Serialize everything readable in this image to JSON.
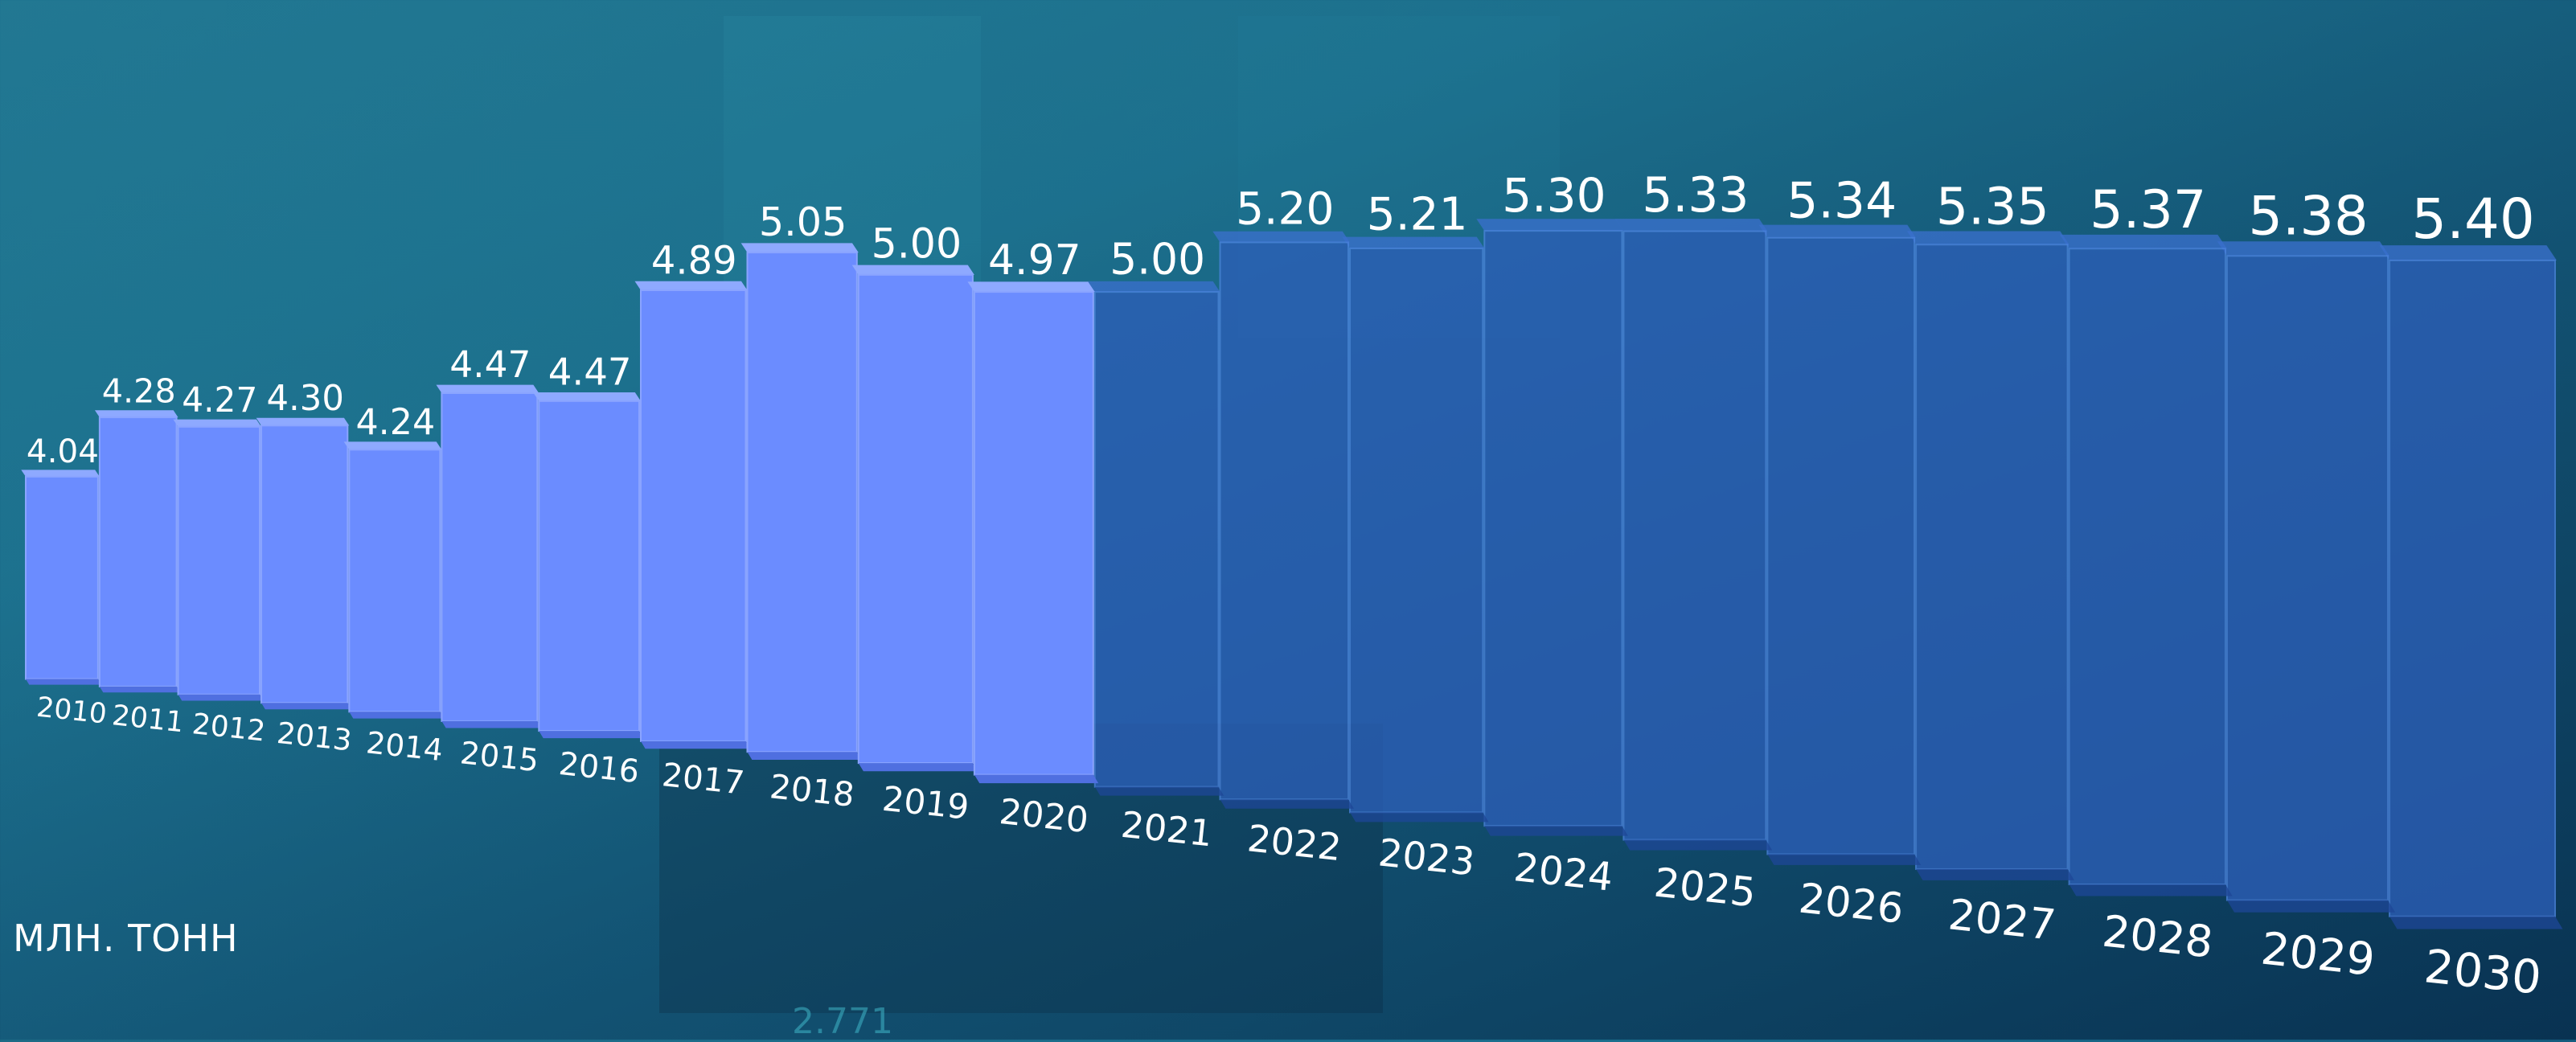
{
  "unit_label": "МЛН. ТОНН",
  "faint_number": "2.771",
  "colors": {
    "actual_bar": "#6b8cff",
    "actual_bar_side": "#4f6fe0",
    "actual_bar_top": "#8ea9ff",
    "forecast_bar": "#2c5fb8",
    "forecast_bar_side": "#1e4796",
    "label": "#ffffff"
  },
  "chart_data": {
    "type": "bar",
    "title": "",
    "xlabel": "",
    "ylabel": "МЛН. ТОНН",
    "categories": [
      "2010",
      "2011",
      "2012",
      "2013",
      "2014",
      "2015",
      "2016",
      "2017",
      "2018",
      "2019",
      "2020",
      "2021",
      "2022",
      "2023",
      "2024",
      "2025",
      "2026",
      "2027",
      "2028",
      "2029",
      "2030"
    ],
    "series": [
      {
        "values": [
          4.04,
          4.28,
          4.27,
          4.3,
          4.24,
          4.47,
          4.47,
          4.89,
          5.05,
          5.0,
          4.97,
          5.0,
          5.2,
          5.21,
          5.3,
          5.33,
          5.34,
          5.35,
          5.37,
          5.38,
          5.4
        ]
      }
    ],
    "value_labels": [
      "4.04",
      "4.28",
      "4.27",
      "4.30",
      "4.24",
      "4.47",
      "4.47",
      "4.89",
      "5.05",
      "5.00",
      "4.97",
      "5.00",
      "5.20",
      "5.21",
      "5.30",
      "5.33",
      "5.34",
      "5.35",
      "5.37",
      "5.38",
      "5.40"
    ],
    "actual_years_count": 11,
    "legend": "none",
    "grid": false
  }
}
